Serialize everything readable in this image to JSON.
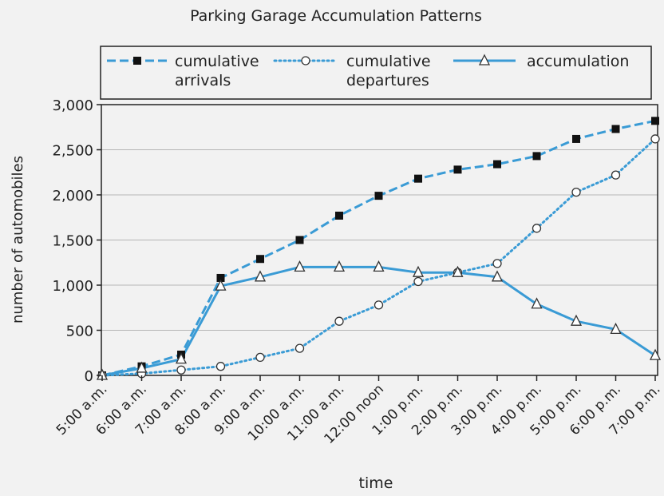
{
  "chart_data": {
    "type": "line",
    "title": "Parking Garage Accumulation Patterns",
    "xlabel": "time",
    "ylabel": "number of automobiles",
    "categories": [
      "5:00 a.m.",
      "6:00 a.m.",
      "7:00 a.m.",
      "8:00 a.m.",
      "9:00 a.m.",
      "10:00 a.m.",
      "11:00 a.m.",
      "12:00 noon",
      "1:00 p.m.",
      "2:00 p.m.",
      "3:00 p.m.",
      "4:00 p.m.",
      "5:00 p.m.",
      "6:00 p.m.",
      "7:00 p.m."
    ],
    "ylim": [
      0,
      3000
    ],
    "yticks": [
      0,
      500,
      1000,
      1500,
      2000,
      2500,
      3000
    ],
    "ytick_labels": [
      "0",
      "500",
      "1,000",
      "1,500",
      "2,000",
      "2,500",
      "3,000"
    ],
    "grid": true,
    "legend_position": "top",
    "series": [
      {
        "name": "cumulative arrivals",
        "legend_lines": [
          "cumulative",
          "arrivals"
        ],
        "style": "dashed",
        "marker": "filled-square",
        "color": "#3a9bd5",
        "values": [
          0,
          100,
          230,
          1080,
          1290,
          1500,
          1770,
          1990,
          2180,
          2280,
          2340,
          2430,
          2620,
          2730,
          2820
        ]
      },
      {
        "name": "cumulative departures",
        "legend_lines": [
          "cumulative",
          "departures"
        ],
        "style": "dotted",
        "marker": "open-circle",
        "color": "#3a9bd5",
        "values": [
          0,
          20,
          60,
          100,
          200,
          300,
          600,
          780,
          1040,
          1140,
          1240,
          1630,
          2030,
          2220,
          2620
        ]
      },
      {
        "name": "accumulation",
        "legend_lines": [
          "accumulation"
        ],
        "style": "solid",
        "marker": "open-triangle",
        "color": "#3a9bd5",
        "values": [
          0,
          80,
          180,
          990,
          1090,
          1200,
          1200,
          1200,
          1140,
          1140,
          1090,
          790,
          600,
          510,
          220
        ]
      }
    ]
  }
}
